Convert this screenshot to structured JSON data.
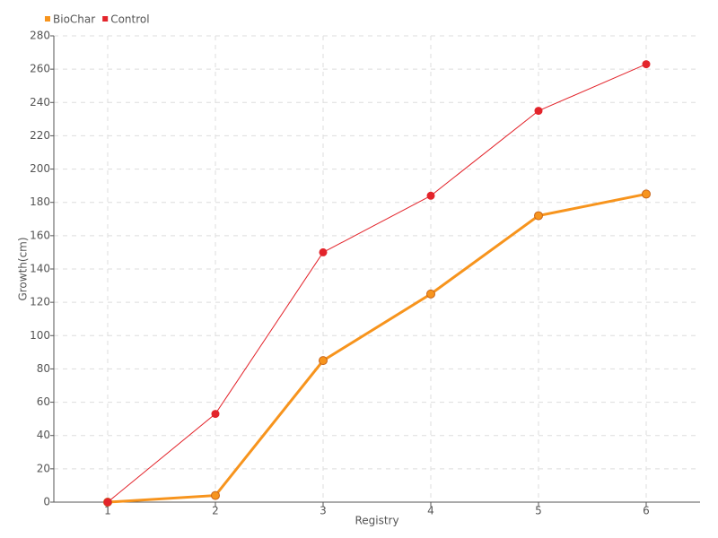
{
  "chart_data": {
    "type": "line",
    "x_label": "Registry",
    "y_label": "Growth(cm)",
    "categories": [
      "1",
      "2",
      "3",
      "4",
      "5",
      "6"
    ],
    "series": [
      {
        "name": "BioChar",
        "color": "#f7941d",
        "values": [
          0,
          4,
          85,
          125,
          172,
          185
        ]
      },
      {
        "name": "Control",
        "color": "#e3242b",
        "values": [
          0,
          53,
          150,
          184,
          235,
          263
        ]
      }
    ],
    "ylim": [
      0,
      280
    ],
    "yticks": [
      0,
      20,
      40,
      60,
      80,
      100,
      120,
      140,
      160,
      180,
      200,
      220,
      240,
      260,
      280
    ],
    "grid": true,
    "legend": "top-left"
  }
}
